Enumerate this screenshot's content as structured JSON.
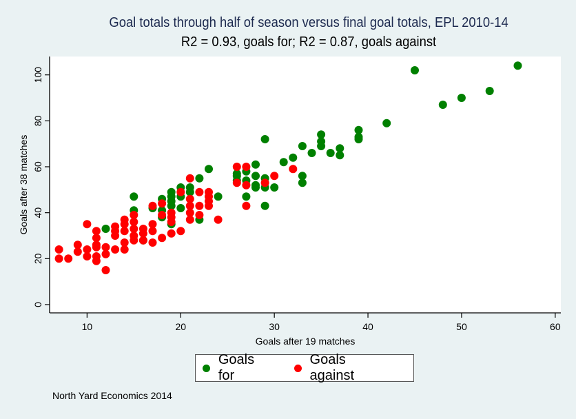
{
  "colors": {
    "background": "#eaf2f3",
    "plot_background": "#ffffff",
    "goals_for": "#008000",
    "goals_against": "#ff0000",
    "title": "#1e2b50"
  },
  "note": "North Yard Economics 2014",
  "chart_data": {
    "type": "scatter",
    "title": "Goal totals through half of season versus final goal totals, EPL 2010-14",
    "subtitle": "R2 = 0.93, goals for; R2 = 0.87, goals against",
    "xlabel": "Goals after 19 matches",
    "ylabel": "Goals after 38 matches",
    "xlim": [
      6,
      60.6
    ],
    "ylim": [
      -3.6,
      108
    ],
    "xticks": [
      10,
      20,
      30,
      40,
      50,
      60
    ],
    "yticks": [
      0,
      20,
      40,
      60,
      80,
      100
    ],
    "xtick_labels": [
      "10",
      "20",
      "30",
      "40",
      "50",
      "60"
    ],
    "ytick_labels": [
      "0",
      "20",
      "40",
      "60",
      "80",
      "100"
    ],
    "grid": false,
    "legend_position": "bottom-center",
    "legend": [
      "Goals for",
      "Goals against"
    ],
    "series": [
      {
        "name": "Goals for",
        "color": "#008000",
        "points": [
          [
            12,
            33
          ],
          [
            15,
            47
          ],
          [
            15,
            41
          ],
          [
            16,
            28
          ],
          [
            17,
            42
          ],
          [
            18,
            46
          ],
          [
            18,
            41
          ],
          [
            18,
            38
          ],
          [
            19,
            49
          ],
          [
            19,
            47
          ],
          [
            19,
            45
          ],
          [
            19,
            43
          ],
          [
            19,
            35
          ],
          [
            20,
            51
          ],
          [
            20,
            47
          ],
          [
            20,
            42
          ],
          [
            21,
            51
          ],
          [
            21,
            49
          ],
          [
            22,
            55
          ],
          [
            22,
            37
          ],
          [
            23,
            59
          ],
          [
            24,
            47
          ],
          [
            26,
            57
          ],
          [
            26,
            56
          ],
          [
            26,
            54
          ],
          [
            27,
            58
          ],
          [
            27,
            54
          ],
          [
            27,
            47
          ],
          [
            28,
            61
          ],
          [
            28,
            56
          ],
          [
            28,
            52
          ],
          [
            28,
            51
          ],
          [
            29,
            72
          ],
          [
            29,
            55
          ],
          [
            29,
            51
          ],
          [
            29,
            43
          ],
          [
            30,
            51
          ],
          [
            31,
            62
          ],
          [
            32,
            64
          ],
          [
            33,
            69
          ],
          [
            33,
            56
          ],
          [
            33,
            53
          ],
          [
            34,
            66
          ],
          [
            35,
            74
          ],
          [
            35,
            71
          ],
          [
            35,
            69
          ],
          [
            36,
            66
          ],
          [
            37,
            68
          ],
          [
            37,
            65
          ],
          [
            39,
            76
          ],
          [
            39,
            73
          ],
          [
            39,
            72
          ],
          [
            42,
            79
          ],
          [
            45,
            102
          ],
          [
            48,
            87
          ],
          [
            50,
            90
          ],
          [
            53,
            93
          ],
          [
            56,
            104
          ]
        ]
      },
      {
        "name": "Goals against",
        "color": "#ff0000",
        "points": [
          [
            7,
            24
          ],
          [
            7,
            20
          ],
          [
            8,
            20
          ],
          [
            9,
            26
          ],
          [
            9,
            23
          ],
          [
            10,
            35
          ],
          [
            10,
            24
          ],
          [
            10,
            21
          ],
          [
            11,
            32
          ],
          [
            11,
            29
          ],
          [
            11,
            26
          ],
          [
            11,
            25
          ],
          [
            11,
            21
          ],
          [
            11,
            19
          ],
          [
            12,
            25
          ],
          [
            12,
            22
          ],
          [
            12,
            15
          ],
          [
            13,
            34
          ],
          [
            13,
            32
          ],
          [
            13,
            30
          ],
          [
            13,
            24
          ],
          [
            14,
            37
          ],
          [
            14,
            35
          ],
          [
            14,
            32
          ],
          [
            14,
            27
          ],
          [
            14,
            24
          ],
          [
            15,
            39
          ],
          [
            15,
            36
          ],
          [
            15,
            33
          ],
          [
            15,
            30
          ],
          [
            15,
            28
          ],
          [
            16,
            33
          ],
          [
            16,
            31
          ],
          [
            16,
            28
          ],
          [
            17,
            43
          ],
          [
            17,
            35
          ],
          [
            17,
            32
          ],
          [
            17,
            27
          ],
          [
            18,
            44
          ],
          [
            18,
            39
          ],
          [
            18,
            29
          ],
          [
            19,
            40
          ],
          [
            19,
            38
          ],
          [
            19,
            36
          ],
          [
            19,
            31
          ],
          [
            20,
            49
          ],
          [
            20,
            32
          ],
          [
            21,
            55
          ],
          [
            21,
            46
          ],
          [
            21,
            43
          ],
          [
            21,
            40
          ],
          [
            21,
            37
          ],
          [
            22,
            49
          ],
          [
            22,
            43
          ],
          [
            22,
            39
          ],
          [
            23,
            49
          ],
          [
            23,
            47
          ],
          [
            23,
            45
          ],
          [
            23,
            43
          ],
          [
            24,
            37
          ],
          [
            26,
            60
          ],
          [
            26,
            53
          ],
          [
            27,
            60
          ],
          [
            27,
            52
          ],
          [
            27,
            43
          ],
          [
            29,
            53
          ],
          [
            30,
            56
          ],
          [
            32,
            59
          ]
        ]
      }
    ]
  }
}
